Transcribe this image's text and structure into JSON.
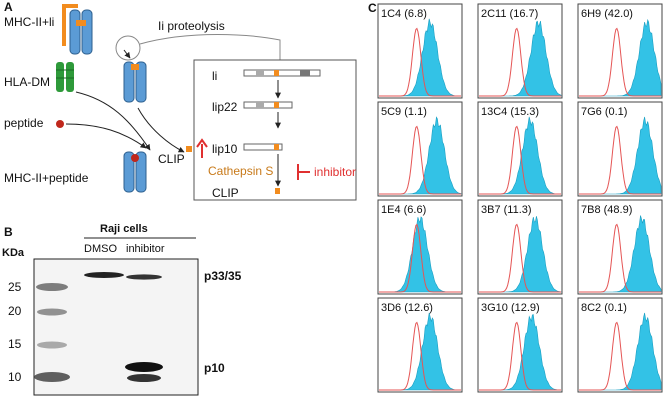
{
  "panel_a": {
    "label": "A",
    "mhc_ii_li": "MHC-II+li",
    "ii_proteolysis": "Ii proteolysis",
    "hla_dm": "HLA-DM",
    "peptide": "peptide",
    "clip": "CLIP",
    "mhc_ii_peptide": "MHC-II+peptide",
    "box": {
      "li": "li",
      "lip22": "lip22",
      "lip10": "lip10",
      "cathepsin_s": "Cathepsin S",
      "inhibitor": "inhibitor",
      "clip": "CLIP"
    },
    "colors": {
      "mhc": "#5b9bd5",
      "ii": "#f28c1e",
      "hla_dm": "#2e9a3a",
      "peptide": "#c0281c",
      "red": "#e03030"
    }
  },
  "panel_b": {
    "label": "B",
    "kda": "KDa",
    "cell_line": "Raji cells",
    "lanes": [
      "DMSO",
      "inhibitor"
    ],
    "markers": [
      "25",
      "20",
      "15",
      "10"
    ],
    "bands": [
      "p33/35",
      "p10"
    ]
  },
  "panel_c": {
    "label": "C",
    "histograms": [
      {
        "name": "1C4",
        "value": "(6.8)",
        "shift": 0.62
      },
      {
        "name": "2C11",
        "value": "(16.7)",
        "shift": 0.72
      },
      {
        "name": "6H9",
        "value": "(42.0)",
        "shift": 0.82
      },
      {
        "name": "5C9",
        "value": "(1.1)",
        "shift": 0.7
      },
      {
        "name": "13C4",
        "value": "(15.3)",
        "shift": 0.62
      },
      {
        "name": "7G6",
        "value": "(0.1)",
        "shift": 0.8
      },
      {
        "name": "1E4",
        "value": "(6.6)",
        "shift": 0.5
      },
      {
        "name": "3B7",
        "value": "(11.3)",
        "shift": 0.68
      },
      {
        "name": "7B8",
        "value": "(48.9)",
        "shift": 0.76
      },
      {
        "name": "3D6",
        "value": "(12.6)",
        "shift": 0.62
      },
      {
        "name": "3G10",
        "value": "(12.9)",
        "shift": 0.64
      },
      {
        "name": "8C2",
        "value": "(0.1)",
        "shift": 0.8
      }
    ],
    "colors": {
      "filled": "#33c2e6",
      "outline": "#e55555"
    }
  }
}
